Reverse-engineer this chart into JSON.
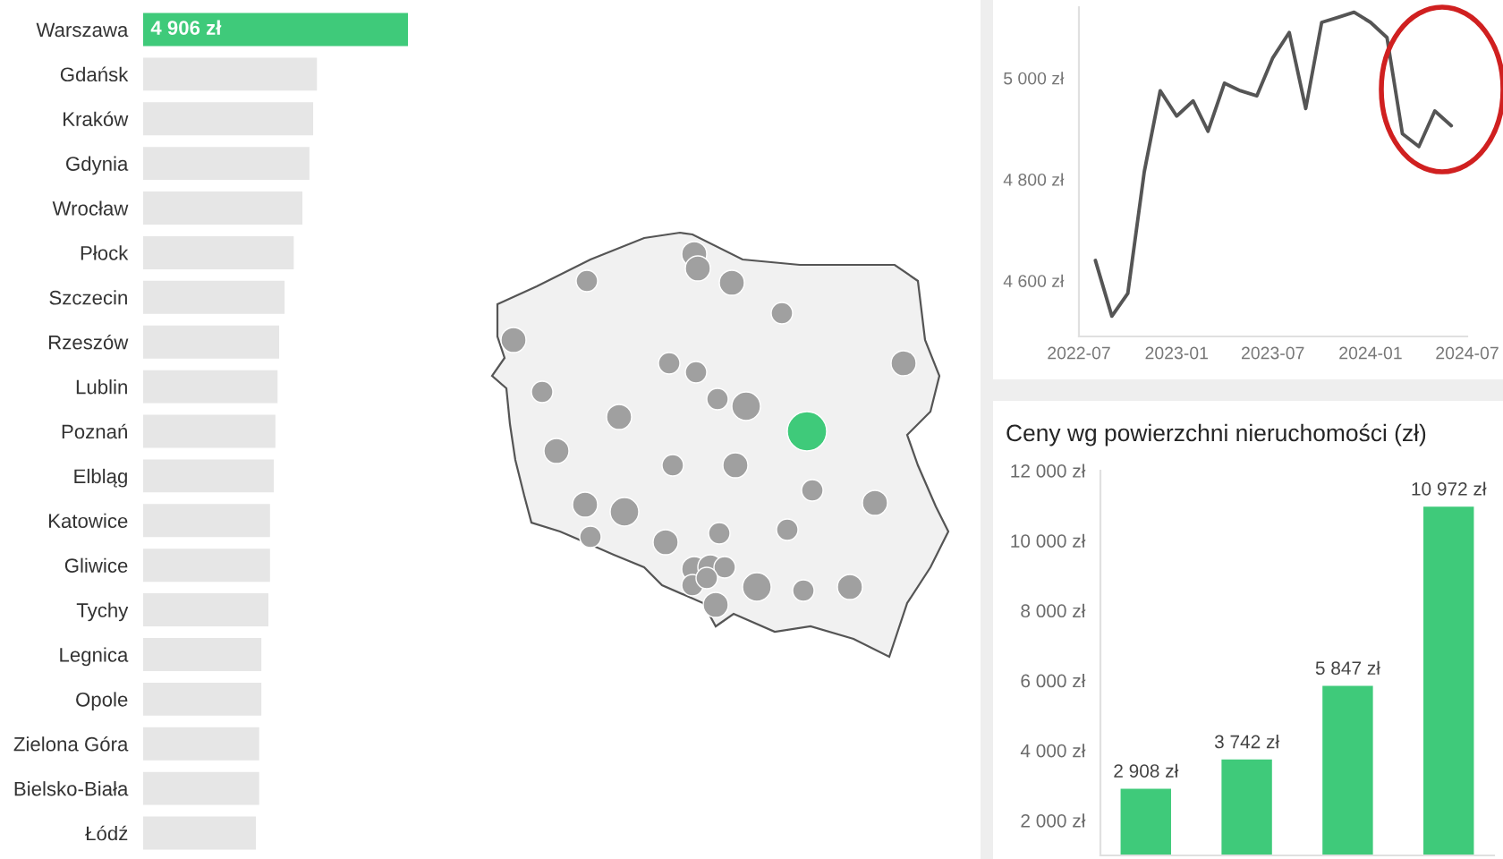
{
  "chart_data": [
    {
      "type": "bar",
      "orientation": "horizontal",
      "tick_labels": "y",
      "categories": [
        "Warszawa",
        "Gdańsk",
        "Kraków",
        "Gdynia",
        "Wrocław",
        "Płock",
        "Szczecin",
        "Rzeszów",
        "Lublin",
        "Poznań",
        "Elbląg",
        "Katowice",
        "Gliwice",
        "Tychy",
        "Legnica",
        "Opole",
        "Zielona Góra",
        "Bielsko-Biała",
        "Łódź"
      ],
      "values": [
        4906,
        3220,
        3150,
        3080,
        2950,
        2790,
        2620,
        2520,
        2490,
        2450,
        2420,
        2350,
        2350,
        2320,
        2190,
        2190,
        2150,
        2150,
        2090
      ],
      "colors": [
        "#3fca7a",
        "#e6e6e6",
        "#e6e6e6",
        "#e6e6e6",
        "#e6e6e6",
        "#e6e6e6",
        "#e6e6e6",
        "#e6e6e6",
        "#e6e6e6",
        "#e6e6e6",
        "#e6e6e6",
        "#e6e6e6",
        "#e6e6e6",
        "#e6e6e6",
        "#e6e6e6",
        "#e6e6e6",
        "#e6e6e6",
        "#e6e6e6",
        "#e6e6e6"
      ],
      "value_labels": [
        "4 906 zł",
        null,
        null,
        null,
        null,
        null,
        null,
        null,
        null,
        null,
        null,
        null,
        null,
        null,
        null,
        null,
        null,
        null,
        null
      ]
    },
    {
      "type": "line",
      "x": [
        "2022-08",
        "2022-09",
        "2022-10",
        "2022-11",
        "2022-12",
        "2023-01",
        "2023-02",
        "2023-03",
        "2023-04",
        "2023-05",
        "2023-06",
        "2023-07",
        "2023-08",
        "2023-09",
        "2023-10",
        "2023-11",
        "2023-12",
        "2024-01",
        "2024-02",
        "2024-03",
        "2024-04",
        "2024-05",
        "2024-06"
      ],
      "series": [
        {
          "color": "#555555",
          "values": [
            4640,
            4530,
            4575,
            4815,
            4975,
            4925,
            4955,
            4895,
            4990,
            4975,
            4965,
            5040,
            5090,
            4940,
            5110,
            5120,
            5130,
            5110,
            5080,
            4890,
            4865,
            4935,
            4906
          ]
        }
      ],
      "xlim": [
        "2022-07",
        "2024-07"
      ],
      "xticks": [
        "2022-07",
        "2023-01",
        "2023-07",
        "2024-01",
        "2024-07"
      ],
      "ylim": [
        4490,
        5140
      ],
      "yticks": [
        {
          "value": 4600,
          "label": "4 600 zł"
        },
        {
          "value": 4800,
          "label": "4 800 zł"
        },
        {
          "value": 5000,
          "label": "5 000 zł"
        }
      ]
    },
    {
      "type": "bar",
      "title": "Ceny wg powierzchni nieruchomości (zł)",
      "tick_labels": "y",
      "categories": [
        null,
        null,
        null,
        null
      ],
      "values": [
        2908,
        3742,
        5847,
        10972
      ],
      "color": "#3fca7a",
      "value_labels": [
        "2 908 zł",
        "3 742 zł",
        "5 847 zł",
        "10 972 zł"
      ],
      "ylim": [
        1000,
        12000
      ],
      "yticks": [
        {
          "value": 2000,
          "label": "2 000 zł"
        },
        {
          "value": 4000,
          "label": "4 000 zł"
        },
        {
          "value": 6000,
          "label": "6 000 zł"
        },
        {
          "value": 8000,
          "label": "8 000 zł"
        },
        {
          "value": 10000,
          "label": "10 000 zł"
        },
        {
          "value": 12000,
          "label": "12 000 zł"
        }
      ]
    }
  ]
}
